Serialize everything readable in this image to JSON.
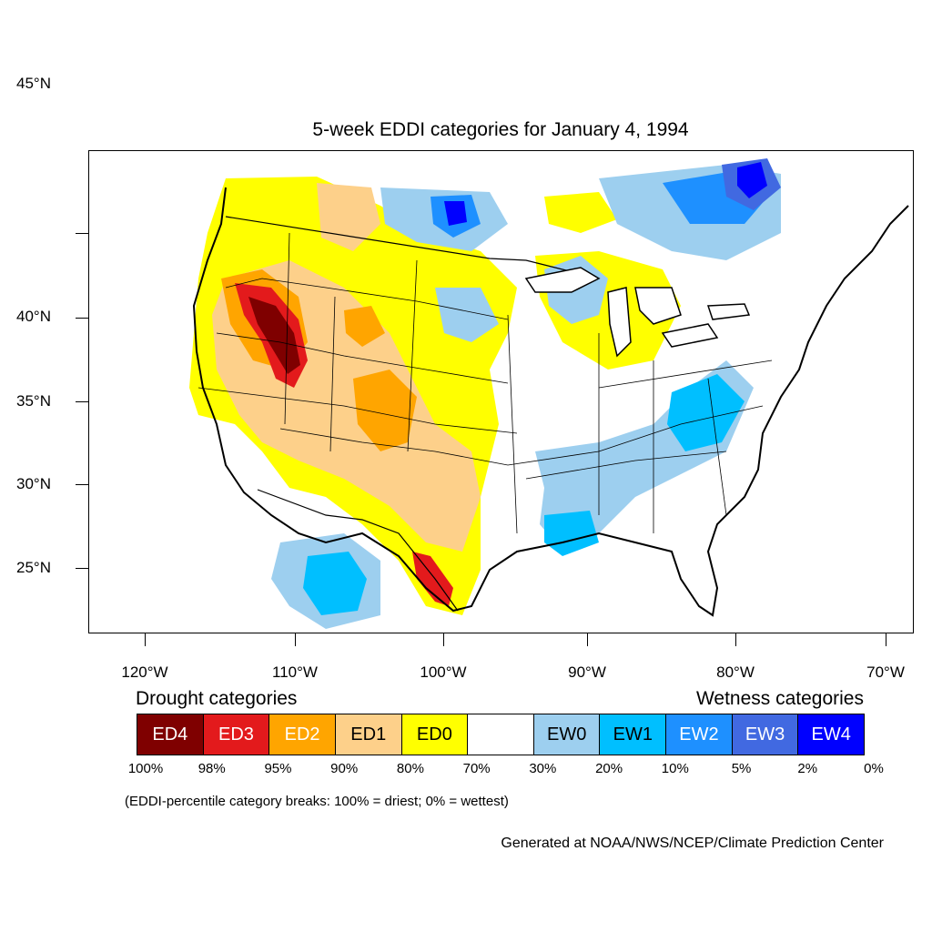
{
  "title": "5-week EDDI categories for January 4, 1994",
  "lat_labels": [
    "45°N",
    "40°N",
    "35°N",
    "30°N",
    "25°N"
  ],
  "lon_labels": [
    "120°W",
    "110°W",
    "100°W",
    "90°W",
    "80°W",
    "70°W"
  ],
  "legend": {
    "drought_heading": "Drought categories",
    "wetness_heading": "Wetness categories",
    "categories": [
      {
        "label": "ED4",
        "color": "#7f0000",
        "text_color": "#ffffff"
      },
      {
        "label": "ED3",
        "color": "#e31a1c",
        "text_color": "#ffffff"
      },
      {
        "label": "ED2",
        "color": "#ffa500",
        "text_color": "#ffffff"
      },
      {
        "label": "ED1",
        "color": "#fdd08a",
        "text_color": "#000000"
      },
      {
        "label": "ED0",
        "color": "#ffff00",
        "text_color": "#000000"
      },
      {
        "label": "",
        "color": "#ffffff",
        "text_color": "#000000"
      },
      {
        "label": "EW0",
        "color": "#9dcfef",
        "text_color": "#000000"
      },
      {
        "label": "EW1",
        "color": "#00bfff",
        "text_color": "#000000"
      },
      {
        "label": "EW2",
        "color": "#1e90ff",
        "text_color": "#ffffff"
      },
      {
        "label": "EW3",
        "color": "#4169e1",
        "text_color": "#ffffff"
      },
      {
        "label": "EW4",
        "color": "#0000ff",
        "text_color": "#ffffff"
      }
    ],
    "breaks": [
      "100%",
      "98%",
      "95%",
      "90%",
      "80%",
      "70%",
      "30%",
      "20%",
      "10%",
      "5%",
      "2%",
      "0%"
    ]
  },
  "note": "(EDDI-percentile category breaks: 100% = driest; 0% = wettest)",
  "credit": "Generated at NOAA/NWS/NCEP/Climate Prediction Center"
}
